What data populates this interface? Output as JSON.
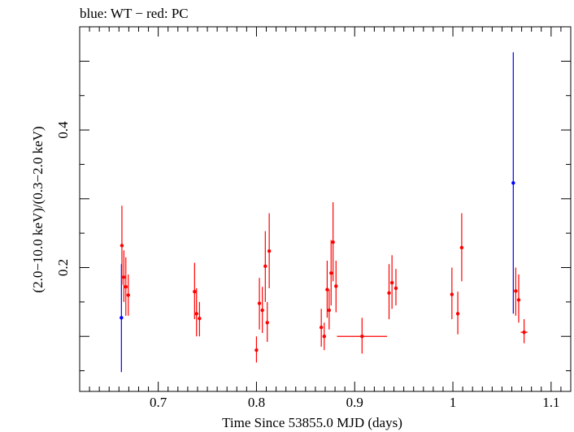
{
  "chart_data": {
    "type": "scatter",
    "title": "blue: WT − red: PC",
    "xlabel": "Time Since 53855.0 MJD (days)",
    "ylabel": "(2.0−10.0 keV)/(0.3−2.0 keV)",
    "xlim": [
      0.62,
      1.12
    ],
    "ylim": [
      0.02,
      0.55
    ],
    "x_ticks": [
      0.7,
      0.8,
      0.9,
      1,
      1.1
    ],
    "x_tick_labels": [
      "0.7",
      "0.8",
      "0.9",
      "1",
      "1.1"
    ],
    "y_ticks": [
      0.2,
      0.4
    ],
    "y_tick_labels": [
      "0.2",
      "0.4"
    ],
    "grid": false,
    "series": [
      {
        "name": "WT",
        "color": "#0000ff",
        "points": [
          {
            "x": 0.6625,
            "y": 0.127,
            "ylo": 0.048,
            "yhi": 0.205,
            "xerr": 0
          },
          {
            "x": 1.0615,
            "y": 0.323,
            "ylo": 0.133,
            "yhi": 0.513,
            "xerr": 0
          }
        ]
      },
      {
        "name": "PC",
        "color": "#ff0000",
        "points": [
          {
            "x": 0.663,
            "y": 0.232,
            "ylo": 0.175,
            "yhi": 0.29,
            "xerr": 0
          },
          {
            "x": 0.665,
            "y": 0.186,
            "ylo": 0.15,
            "yhi": 0.225,
            "xerr": 0
          },
          {
            "x": 0.667,
            "y": 0.172,
            "ylo": 0.13,
            "yhi": 0.215,
            "xerr": 0
          },
          {
            "x": 0.6695,
            "y": 0.16,
            "ylo": 0.13,
            "yhi": 0.19,
            "xerr": 0
          },
          {
            "x": 0.737,
            "y": 0.165,
            "ylo": 0.125,
            "yhi": 0.207,
            "xerr": 0
          },
          {
            "x": 0.739,
            "y": 0.133,
            "ylo": 0.1,
            "yhi": 0.17,
            "xerr": 0
          },
          {
            "x": 0.742,
            "y": 0.126,
            "ylo": 0.1,
            "yhi": 0.15,
            "xerr": 0
          },
          {
            "x": 0.8,
            "y": 0.08,
            "ylo": 0.062,
            "yhi": 0.1,
            "xerr": 0
          },
          {
            "x": 0.803,
            "y": 0.148,
            "ylo": 0.11,
            "yhi": 0.185,
            "xerr": 0
          },
          {
            "x": 0.806,
            "y": 0.138,
            "ylo": 0.105,
            "yhi": 0.172,
            "xerr": 0
          },
          {
            "x": 0.809,
            "y": 0.202,
            "ylo": 0.15,
            "yhi": 0.253,
            "xerr": 0
          },
          {
            "x": 0.811,
            "y": 0.12,
            "ylo": 0.092,
            "yhi": 0.15,
            "xerr": 0
          },
          {
            "x": 0.813,
            "y": 0.224,
            "ylo": 0.17,
            "yhi": 0.279,
            "xerr": 0
          },
          {
            "x": 0.866,
            "y": 0.113,
            "ylo": 0.085,
            "yhi": 0.14,
            "xerr": 0
          },
          {
            "x": 0.869,
            "y": 0.1,
            "ylo": 0.08,
            "yhi": 0.12,
            "xerr": 0
          },
          {
            "x": 0.872,
            "y": 0.168,
            "ylo": 0.127,
            "yhi": 0.21,
            "xerr": 0
          },
          {
            "x": 0.874,
            "y": 0.138,
            "ylo": 0.11,
            "yhi": 0.168,
            "xerr": 0
          },
          {
            "x": 0.876,
            "y": 0.192,
            "ylo": 0.145,
            "yhi": 0.24,
            "xerr": 0
          },
          {
            "x": 0.878,
            "y": 0.237,
            "ylo": 0.18,
            "yhi": 0.295,
            "xerr": 0
          },
          {
            "x": 0.881,
            "y": 0.173,
            "ylo": 0.135,
            "yhi": 0.21,
            "xerr": 0
          },
          {
            "x": 0.9075,
            "y": 0.1,
            "ylo": 0.075,
            "yhi": 0.127,
            "xerr": 0.0255
          },
          {
            "x": 0.935,
            "y": 0.163,
            "ylo": 0.125,
            "yhi": 0.205,
            "xerr": 0
          },
          {
            "x": 0.938,
            "y": 0.178,
            "ylo": 0.14,
            "yhi": 0.218,
            "xerr": 0
          },
          {
            "x": 0.942,
            "y": 0.17,
            "ylo": 0.145,
            "yhi": 0.198,
            "xerr": 0
          },
          {
            "x": 0.999,
            "y": 0.161,
            "ylo": 0.125,
            "yhi": 0.2,
            "xerr": 0
          },
          {
            "x": 1.005,
            "y": 0.133,
            "ylo": 0.103,
            "yhi": 0.165,
            "xerr": 0
          },
          {
            "x": 1.009,
            "y": 0.229,
            "ylo": 0.18,
            "yhi": 0.279,
            "xerr": 0
          },
          {
            "x": 1.064,
            "y": 0.166,
            "ylo": 0.13,
            "yhi": 0.2,
            "xerr": 0
          },
          {
            "x": 1.067,
            "y": 0.153,
            "ylo": 0.12,
            "yhi": 0.19,
            "xerr": 0
          },
          {
            "x": 1.0725,
            "y": 0.106,
            "ylo": 0.09,
            "yhi": 0.125,
            "xerr": 0.0035
          }
        ]
      }
    ]
  }
}
